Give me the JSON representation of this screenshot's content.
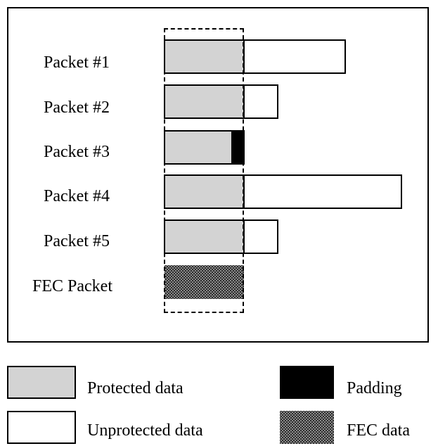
{
  "packets": [
    {
      "label": "Packet #1",
      "protected_fraction": 0.44,
      "unprotected_fraction": 0.56
    },
    {
      "label": "Packet #2",
      "protected_fraction": 0.7,
      "unprotected_fraction": 0.3
    },
    {
      "label": "Packet #3",
      "protected_fraction": 0.83,
      "padding_fraction": 0.17
    },
    {
      "label": "Packet #4",
      "protected_fraction": 0.33,
      "unprotected_fraction": 0.67
    },
    {
      "label": "Packet #5",
      "protected_fraction": 0.7,
      "unprotected_fraction": 0.3
    }
  ],
  "fec_packet": {
    "label": "FEC Packet"
  },
  "legend": {
    "protected": "Protected data",
    "unprotected": "Unprotected data",
    "padding": "Padding",
    "fec": "FEC data"
  },
  "colors": {
    "protected": "#d3d3d3",
    "unprotected": "#ffffff",
    "padding": "#000000",
    "fec": "#2b2b2b"
  }
}
